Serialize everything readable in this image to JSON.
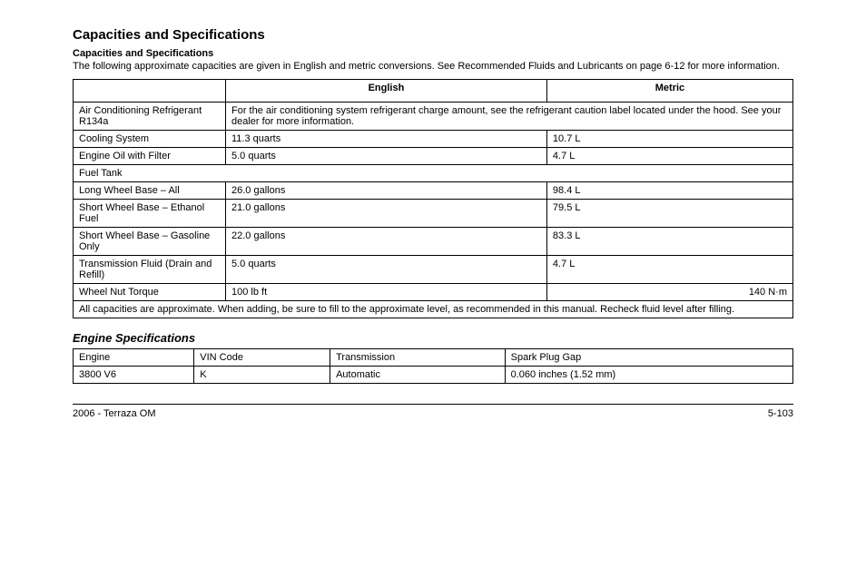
{
  "section_title": "Capacities and Specifications",
  "intro": "The following approximate capacities are given in English and metric conversions. See Recommended Fluids and Lubricants on page 6-12 for more information.",
  "col_title": "Capacities and Specifications",
  "table": {
    "header_spec": "",
    "header_english": "English",
    "header_metric": "Metric",
    "rows": [
      {
        "label": "Air Conditioning Refrigerant R134a",
        "note": "For the air conditioning system refrigerant charge amount, see the refrigerant caution label located under the hood. See your dealer for more information.",
        "span": true
      },
      {
        "label": "Cooling System",
        "english": "11.3 quarts",
        "metric": "10.7 L"
      },
      {
        "label": "Engine Oil with Filter",
        "english": "5.0 quarts",
        "metric": "4.7 L"
      },
      {
        "label_header": "Fuel Tank"
      },
      {
        "label": "  Long Wheel Base – All",
        "english": "26.0 gallons",
        "metric": "98.4 L"
      },
      {
        "label": "  Short Wheel Base – Ethanol Fuel",
        "english": "21.0 gallons",
        "metric": "79.5 L"
      },
      {
        "label": "  Short Wheel Base – Gasoline Only",
        "english": "22.0 gallons",
        "metric": "83.3 L"
      },
      {
        "label": "Transmission Fluid (Drain and Refill)",
        "english": "5.0 quarts",
        "metric": "4.7 L"
      },
      {
        "label": "Wheel Nut Torque",
        "english": "100 lb ft",
        "metric": "140 N·m",
        "unit_note": true
      },
      {
        "label_note": "All capacities are approximate. When adding, be sure to fill to the approximate level, as recommended in this manual. Recheck fluid level after filling."
      }
    ]
  },
  "eng_heading": "Engine Specifications",
  "vin": {
    "header": [
      "Engine",
      "VIN Code",
      "Transmission",
      "Spark Plug Gap"
    ],
    "row": [
      "3800 V6",
      "K",
      "Automatic",
      "0.060 inches (1.52 mm)"
    ]
  },
  "footer_left": "2006 - Terraza OM",
  "footer_center": "5-103"
}
